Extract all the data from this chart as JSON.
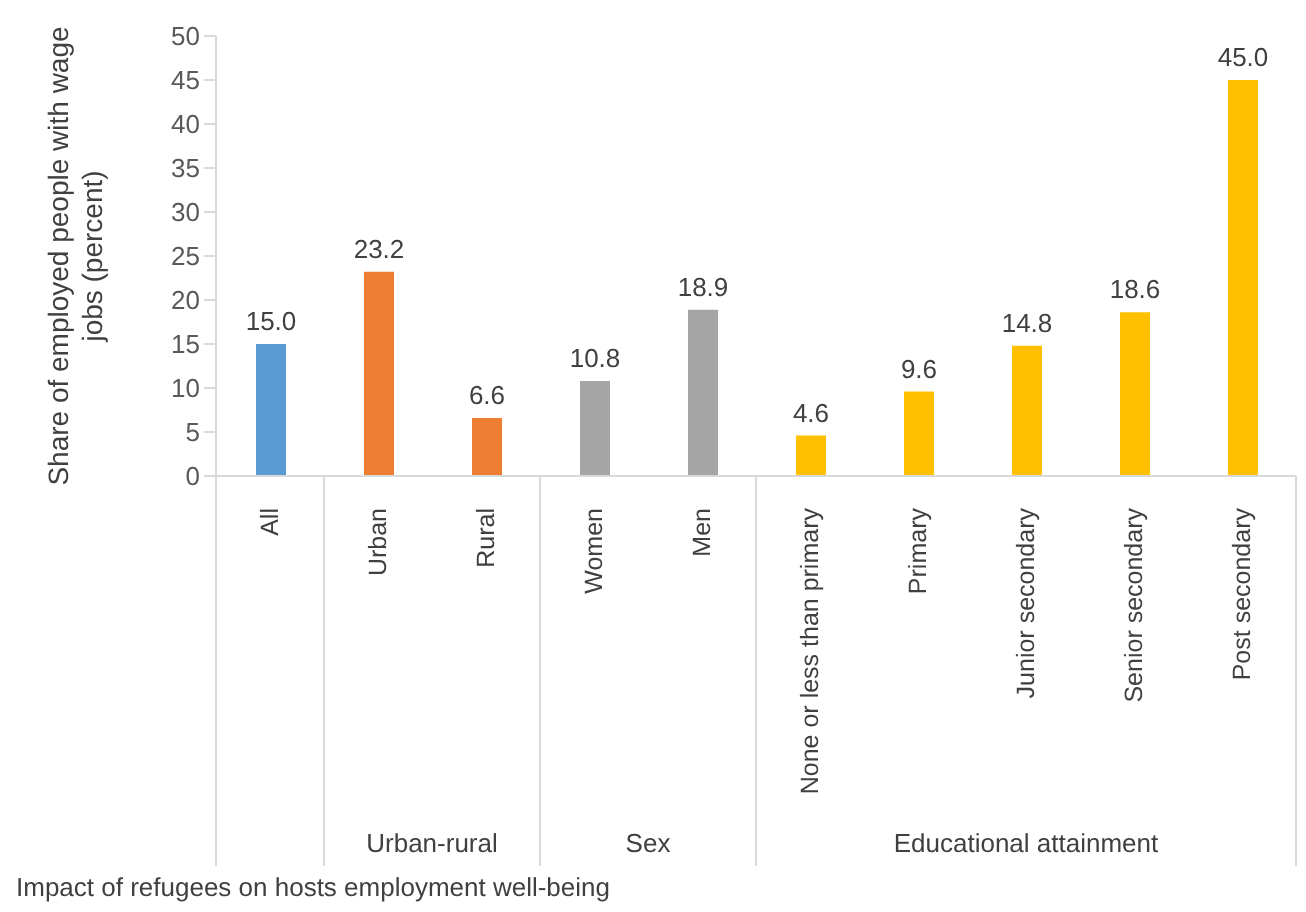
{
  "chart_data": {
    "type": "bar",
    "ylabel": "Share of employed people with wage jobs (percent)",
    "categories": [
      "All",
      "Urban",
      "Rural",
      "Women",
      "Men",
      "None or less than primary",
      "Primary",
      "Junior secondary",
      "Senior secondary",
      "Post secondary"
    ],
    "values": [
      15.0,
      23.2,
      6.6,
      10.8,
      18.9,
      4.6,
      9.6,
      14.8,
      18.6,
      45.0
    ],
    "value_labels": [
      "15.0",
      "23.2",
      "6.6",
      "10.8",
      "18.9",
      "4.6",
      "9.6",
      "14.8",
      "18.6",
      "45.0"
    ],
    "colors": [
      "#5b9bd5",
      "#ed7d31",
      "#ed7d31",
      "#a5a5a5",
      "#a5a5a5",
      "#ffc000",
      "#ffc000",
      "#ffc000",
      "#ffc000",
      "#ffc000"
    ],
    "ylim": [
      0,
      50
    ],
    "yticks": [
      0,
      5,
      10,
      15,
      20,
      25,
      30,
      35,
      40,
      45,
      50
    ],
    "grid": false,
    "legend": false,
    "annotations": [
      "Urban-rural",
      "Sex",
      "Educational attainment",
      "Impact of refugees on hosts employment well-being"
    ]
  }
}
